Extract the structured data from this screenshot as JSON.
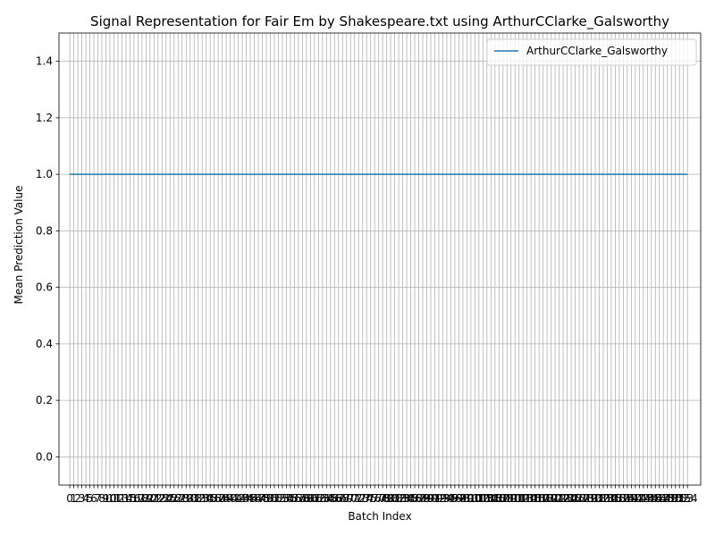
{
  "chart_data": {
    "type": "line",
    "title": "Signal Representation for Fair Em by Shakespeare.txt using ArthurCClarke_Galsworthy",
    "xlabel": "Batch Index",
    "ylabel": "Mean Prediction Value",
    "xlim": [
      -2.7,
      157.3
    ],
    "ylim": [
      -0.1,
      1.5
    ],
    "yticks": [
      0.0,
      0.2,
      0.4,
      0.6,
      0.8,
      1.0,
      1.2,
      1.4
    ],
    "x": [
      0,
      1,
      2,
      3,
      4,
      5,
      6,
      7,
      8,
      9,
      10,
      11,
      12,
      13,
      14,
      15,
      16,
      17,
      18,
      19,
      20,
      21,
      22,
      23,
      24,
      25,
      26,
      27,
      28,
      29,
      30,
      31,
      32,
      33,
      34,
      35,
      36,
      37,
      38,
      39,
      40,
      41,
      42,
      43,
      44,
      45,
      46,
      47,
      48,
      49,
      50,
      51,
      52,
      53,
      54,
      55,
      56,
      57,
      58,
      59,
      60,
      61,
      62,
      63,
      64,
      65,
      66,
      67,
      68,
      69,
      70,
      71,
      72,
      73,
      74,
      75,
      76,
      77,
      78,
      79,
      80,
      81,
      82,
      83,
      84,
      85,
      86,
      87,
      88,
      89,
      90,
      91,
      92,
      93,
      94,
      95,
      96,
      97,
      98,
      99,
      100,
      101,
      102,
      103,
      104,
      105,
      106,
      107,
      108,
      109,
      110,
      111,
      112,
      113,
      114,
      115,
      116,
      117,
      118,
      119,
      120,
      121,
      122,
      123,
      124,
      125,
      126,
      127,
      128,
      129,
      130,
      131,
      132,
      133,
      134,
      135,
      136,
      137,
      138,
      139,
      140,
      141,
      142,
      143,
      144,
      145,
      146,
      147,
      148,
      149,
      150,
      151,
      152,
      153,
      154
    ],
    "series": [
      {
        "name": "ArthurCClarke_Galsworthy",
        "color": "#1f77b4",
        "constant_value": 1.0
      }
    ],
    "grid": true,
    "legend_position": "upper right"
  }
}
